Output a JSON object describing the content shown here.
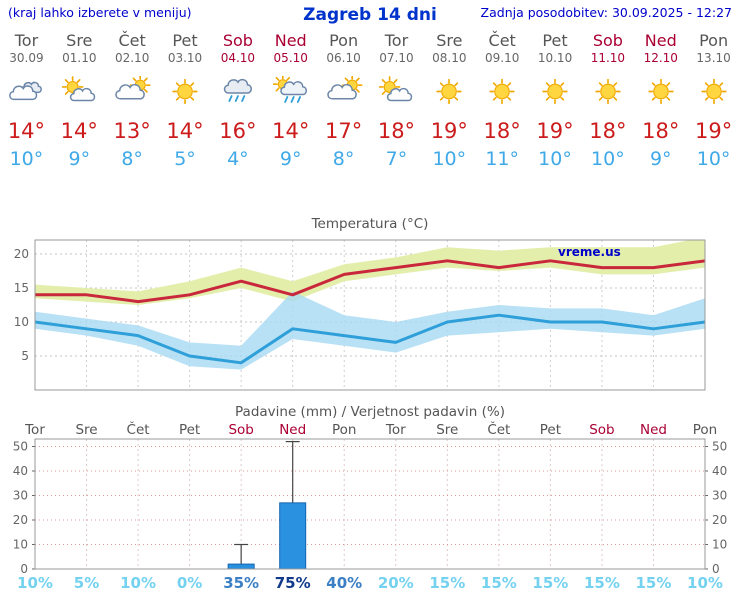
{
  "header": {
    "left_note": "(kraj lahko izberete v meniju)",
    "title": "Zagreb 14 dni",
    "updated": "Zadnja posodobitev: 30.09.2025 - 12:27"
  },
  "units": {
    "degree": "°",
    "percent": "%"
  },
  "days": [
    {
      "name": "Tor",
      "date": "30.09",
      "weekend": false,
      "icon": "cloudy",
      "tmax": 14,
      "tmin": 10,
      "prob": 10
    },
    {
      "name": "Sre",
      "date": "01.10",
      "weekend": false,
      "icon": "partly-cloudy",
      "tmax": 14,
      "tmin": 9,
      "prob": 5
    },
    {
      "name": "Čet",
      "date": "02.10",
      "weekend": false,
      "icon": "mostly-cloudy",
      "tmax": 13,
      "tmin": 8,
      "prob": 10
    },
    {
      "name": "Pet",
      "date": "03.10",
      "weekend": false,
      "icon": "sunny",
      "tmax": 14,
      "tmin": 5,
      "prob": 0
    },
    {
      "name": "Sob",
      "date": "04.10",
      "weekend": true,
      "icon": "rain",
      "tmax": 16,
      "tmin": 4,
      "prob": 35
    },
    {
      "name": "Ned",
      "date": "05.10",
      "weekend": true,
      "icon": "rain-sun",
      "tmax": 14,
      "tmin": 9,
      "prob": 75
    },
    {
      "name": "Pon",
      "date": "06.10",
      "weekend": false,
      "icon": "mostly-cloudy",
      "tmax": 17,
      "tmin": 8,
      "prob": 40
    },
    {
      "name": "Tor",
      "date": "07.10",
      "weekend": false,
      "icon": "partly-cloudy",
      "tmax": 18,
      "tmin": 7,
      "prob": 20
    },
    {
      "name": "Sre",
      "date": "08.10",
      "weekend": false,
      "icon": "sunny",
      "tmax": 19,
      "tmin": 10,
      "prob": 15
    },
    {
      "name": "Čet",
      "date": "09.10",
      "weekend": false,
      "icon": "sunny",
      "tmax": 18,
      "tmin": 11,
      "prob": 15
    },
    {
      "name": "Pet",
      "date": "10.10",
      "weekend": false,
      "icon": "sunny",
      "tmax": 19,
      "tmin": 10,
      "prob": 15
    },
    {
      "name": "Sob",
      "date": "11.10",
      "weekend": true,
      "icon": "sunny",
      "tmax": 18,
      "tmin": 10,
      "prob": 15
    },
    {
      "name": "Ned",
      "date": "12.10",
      "weekend": true,
      "icon": "sunny",
      "tmax": 18,
      "tmin": 9,
      "prob": 15
    },
    {
      "name": "Pon",
      "date": "13.10",
      "weekend": false,
      "icon": "sunny",
      "tmax": 19,
      "tmin": 10,
      "prob": 10
    }
  ],
  "chart_data": [
    {
      "type": "line",
      "title": "Temperatura (°C)",
      "watermark": "vreme.us",
      "ylim": [
        0,
        22
      ],
      "yticks": [
        5,
        10,
        15,
        20
      ],
      "grid": true,
      "series": [
        {
          "name": "tmax",
          "color": "#c9283c",
          "values": [
            14,
            14,
            13,
            14,
            16,
            14,
            17,
            18,
            19,
            18,
            19,
            18,
            18,
            19
          ]
        },
        {
          "name": "tmin",
          "color": "#2e9fd9",
          "values": [
            10,
            9,
            8,
            5,
            4,
            9,
            8,
            7,
            10,
            11,
            10,
            10,
            9,
            10
          ]
        }
      ],
      "bands": [
        {
          "name": "tmax-range",
          "color": "#e3eeab",
          "opacity": 1,
          "upper": [
            15.5,
            15,
            14.5,
            16,
            18,
            16,
            18.5,
            19.5,
            21,
            20.5,
            21,
            21,
            21,
            22.5
          ],
          "lower": [
            13.5,
            13,
            12.5,
            13.5,
            15,
            13,
            16,
            17,
            18,
            17.5,
            18,
            17,
            17,
            18
          ]
        },
        {
          "name": "tmin-range",
          "color": "#a6d9f2",
          "opacity": 0.8,
          "upper": [
            11.5,
            10.5,
            9.5,
            7,
            6.5,
            14.5,
            11,
            10,
            11.5,
            12.5,
            12,
            12,
            11,
            13.5
          ],
          "lower": [
            9,
            8,
            6.5,
            3.5,
            3,
            7.5,
            6.5,
            5.5,
            8,
            8.5,
            9,
            8.5,
            8,
            9
          ]
        }
      ]
    },
    {
      "type": "bar",
      "title": "Padavine (mm) / Verjetnost padavin (%)",
      "categories": [
        "Tor",
        "Sre",
        "Čet",
        "Pet",
        "Sob",
        "Ned",
        "Pon",
        "Tor",
        "Sre",
        "Čet",
        "Pet",
        "Sob",
        "Ned",
        "Pon"
      ],
      "values": [
        0,
        0,
        0,
        0,
        2,
        27,
        0,
        0,
        0,
        0,
        0,
        0,
        0,
        0
      ],
      "whisker_max": [
        0,
        0,
        0,
        0,
        10,
        52,
        0,
        0,
        0,
        0,
        0,
        0,
        0,
        0
      ],
      "probabilities": [
        10,
        5,
        10,
        0,
        35,
        75,
        40,
        20,
        15,
        15,
        15,
        15,
        15,
        10
      ],
      "ylim": [
        0,
        53
      ],
      "yticks": [
        0,
        10,
        20,
        30,
        40,
        50
      ],
      "bar_color": "#2a90e0"
    }
  ],
  "colors": {
    "header_blue": "#0000cc",
    "title_blue": "#0033cc",
    "weekend_red": "#aa0033",
    "day_gray": "#555555",
    "tmax_red": "#cc1b1b",
    "tmin_blue": "#3fa9e8",
    "bar_border": "#1565b0",
    "prob_low": "#74d2f0",
    "prob_mid": "#3b7fc4",
    "prob_high": "#123a8c"
  }
}
